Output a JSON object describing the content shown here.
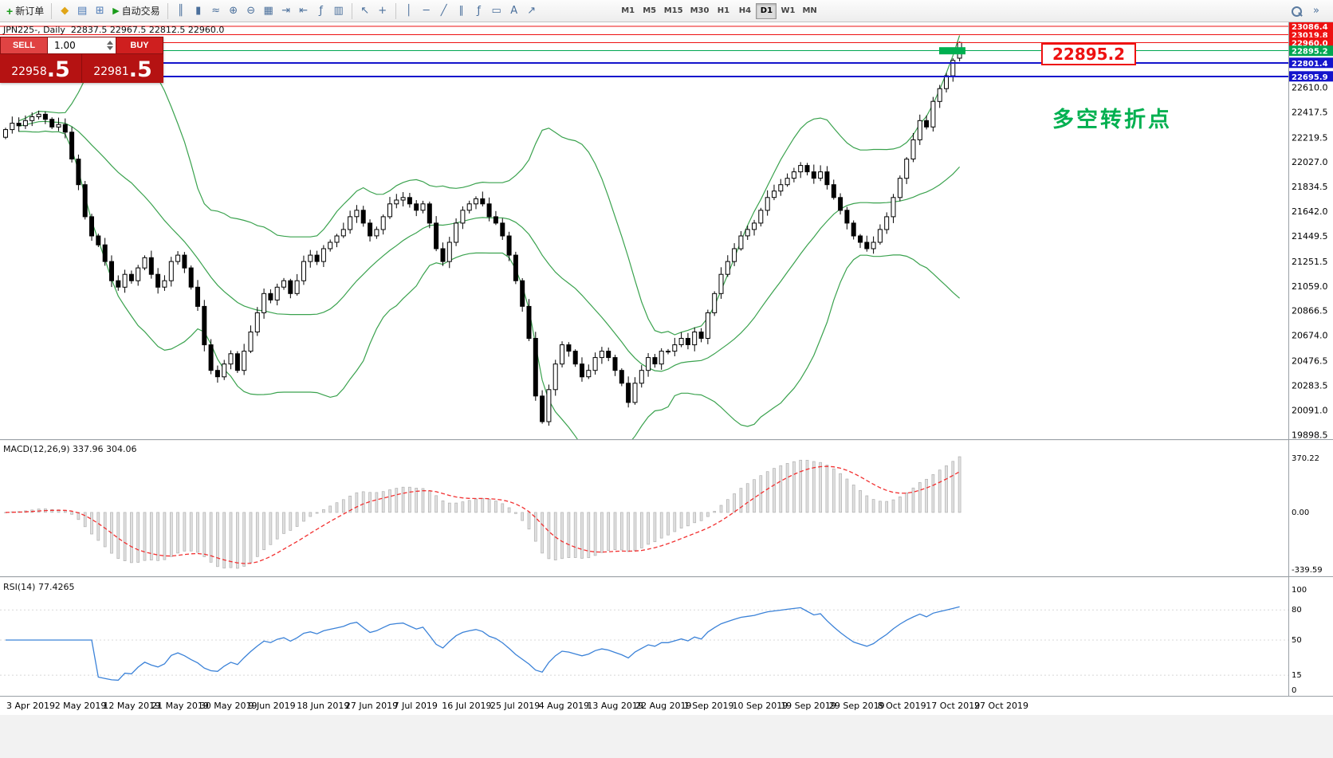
{
  "toolbar": {
    "new_order_label": "新订单",
    "new_order_icon": "+",
    "autotrading_label": "自动交易",
    "autotrading_icon": "▶",
    "panel_icons": [
      {
        "name": "market-watch-icon",
        "glyph": "◆",
        "color": "#e0a517"
      },
      {
        "name": "data-window-icon",
        "glyph": "▤",
        "color": "#4a78b5"
      },
      {
        "name": "navigator-icon",
        "glyph": "⊞",
        "color": "#4a78b5"
      }
    ],
    "chart_icons": [
      {
        "name": "bar-chart-icon",
        "glyph": "║"
      },
      {
        "name": "candlestick-chart-icon",
        "glyph": "▮"
      },
      {
        "name": "line-chart-icon",
        "glyph": "≈"
      },
      {
        "name": "zoom-in-icon",
        "glyph": "⊕"
      },
      {
        "name": "zoom-out-icon",
        "glyph": "⊖"
      },
      {
        "name": "tile-windows-icon",
        "glyph": "▦"
      },
      {
        "name": "auto-scroll-icon",
        "glyph": "⇥"
      },
      {
        "name": "chart-shift-icon",
        "glyph": "⇤"
      },
      {
        "name": "indicators-icon",
        "glyph": "ƒ"
      },
      {
        "name": "objects-list-icon",
        "glyph": "▥"
      }
    ],
    "cursor_icons": [
      {
        "name": "cursor-icon",
        "glyph": "↖"
      },
      {
        "name": "crosshair-icon",
        "glyph": "+"
      }
    ],
    "draw_icons": [
      {
        "name": "vertical-line-icon",
        "glyph": "│"
      },
      {
        "name": "horizontal-line-icon",
        "glyph": "─"
      },
      {
        "name": "trendline-icon",
        "glyph": "╱"
      },
      {
        "name": "channel-icon",
        "glyph": "∥"
      },
      {
        "name": "fibonacci-icon",
        "glyph": "ƒ"
      },
      {
        "name": "shapes-icon",
        "glyph": "▭"
      },
      {
        "name": "text-icon",
        "glyph": "A"
      },
      {
        "name": "arrows-icon",
        "glyph": "↗"
      }
    ],
    "timeframes": [
      "M1",
      "M5",
      "M15",
      "M30",
      "H1",
      "H4",
      "D1",
      "W1",
      "MN"
    ],
    "active_timeframe": "D1",
    "right_icons": [
      {
        "name": "search-icon"
      },
      {
        "name": "toolbar-more-icon",
        "glyph": "»"
      }
    ]
  },
  "chart": {
    "symbol_info": "JPN225-, Daily  22837.5 22967.5 22812.5 22960.0",
    "annotation": "多空转折点",
    "annotation_color": "#00b050",
    "price_label": "22895.2",
    "price_ticks": [
      "22610.0",
      "22417.5",
      "22219.5",
      "22027.0",
      "21834.5",
      "21642.0",
      "21449.5",
      "21251.5",
      "21059.0",
      "20866.5",
      "20674.0",
      "20476.5",
      "20283.5",
      "20091.0",
      "19898.5"
    ],
    "tagged_prices": [
      {
        "value": "23086.4",
        "color": "#ee1111"
      },
      {
        "value": "23019.8",
        "color": "#ee1111"
      },
      {
        "value": "22960.0",
        "color": "#ee1111"
      },
      {
        "value": "22895.2",
        "color": "#00a651"
      },
      {
        "value": "22801.4",
        "color": "#1414cc"
      },
      {
        "value": "22695.9",
        "color": "#1414cc"
      }
    ],
    "dates": [
      "3 Apr 2019",
      "2 May 2019",
      "12 May 2019",
      "21 May 2019",
      "30 May 2019",
      "9 Jun 2019",
      "18 Jun 2019",
      "27 Jun 2019",
      "7 Jul 2019",
      "16 Jul 2019",
      "25 Jul 2019",
      "4 Aug 2019",
      "13 Aug 2019",
      "22 Aug 2019",
      "1 Sep 2019",
      "10 Sep 2019",
      "19 Sep 2019",
      "29 Sep 2019",
      "8 Oct 2019",
      "17 Oct 2019",
      "27 Oct 2019"
    ]
  },
  "trade_panel": {
    "sell_label": "SELL",
    "buy_label": "BUY",
    "volume": "1.00",
    "sell_price_main": "22958",
    "sell_price_frac": ".5",
    "buy_price_main": "22981",
    "buy_price_frac": ".5"
  },
  "macd": {
    "title": "MACD(12,26,9)",
    "values": "337.96 304.06",
    "ticks": [
      "370.22",
      "0.00",
      "-339.59"
    ]
  },
  "rsi": {
    "title": "RSI(14)",
    "value": "77.4265",
    "ticks": [
      "100",
      "80",
      "50",
      "15",
      "0"
    ]
  },
  "chart_data": {
    "type": "candlestick",
    "symbol": "JPN225",
    "timeframe": "Daily",
    "ohlc_current": {
      "open": 22837.5,
      "high": 22967.5,
      "low": 22812.5,
      "close": 22960.0
    },
    "closes": [
      22280,
      22330,
      22310,
      22350,
      22380,
      22400,
      22360,
      22300,
      22320,
      22260,
      22050,
      21850,
      21600,
      21450,
      21380,
      21250,
      21100,
      21050,
      21150,
      21100,
      21200,
      21280,
      21150,
      21050,
      21100,
      21250,
      21300,
      21200,
      21050,
      20900,
      20600,
      20400,
      20350,
      20450,
      20530,
      20400,
      20550,
      20700,
      20850,
      21000,
      20950,
      21050,
      21100,
      21000,
      21100,
      21250,
      21300,
      21250,
      21350,
      21400,
      21450,
      21500,
      21600,
      21650,
      21550,
      21450,
      21500,
      21600,
      21700,
      21730,
      21750,
      21700,
      21650,
      21700,
      21550,
      21350,
      21250,
      21400,
      21550,
      21650,
      21700,
      21740,
      21700,
      21600,
      21550,
      21450,
      21300,
      21100,
      20900,
      20650,
      20200,
      20000,
      20250,
      20450,
      20600,
      20550,
      20450,
      20350,
      20400,
      20500,
      20550,
      20500,
      20400,
      20300,
      20150,
      20300,
      20400,
      20500,
      20450,
      20550,
      20550,
      20600,
      20650,
      20600,
      20700,
      20650,
      20850,
      21000,
      21150,
      21250,
      21350,
      21450,
      21500,
      21550,
      21650,
      21750,
      21800,
      21850,
      21900,
      21950,
      22000,
      21950,
      21900,
      21950,
      21850,
      21750,
      21650,
      21550,
      21450,
      21400,
      21350,
      21400,
      21500,
      21600,
      21750,
      21900,
      22050,
      22200,
      22350,
      22300,
      22500,
      22600,
      22700,
      22820,
      22960
    ],
    "overlays": {
      "bollinger_bands": {
        "period": 20,
        "deviation": 2,
        "color": "#3aa24e"
      }
    },
    "hlines": [
      {
        "price": 23086.4,
        "color": "#ee1111",
        "w": 1
      },
      {
        "price": 23019.8,
        "color": "#ee1111",
        "w": 1
      },
      {
        "price": 22960.0,
        "color": "#ee1111",
        "w": 1
      },
      {
        "price": 22895.2,
        "color": "#00a651",
        "w": 1
      },
      {
        "price": 22801.4,
        "color": "#1414cc",
        "w": 2
      },
      {
        "price": 22695.9,
        "color": "#1414cc",
        "w": 2
      }
    ],
    "highlight_segment": {
      "price": 22895.2,
      "label": "22895.2"
    },
    "sub_charts": [
      {
        "type": "macd",
        "fast": 12,
        "slow": 26,
        "signal_period": 9,
        "macd_value": 337.96,
        "signal_value": 304.06,
        "scale_max": 370.22,
        "scale_min": -339.59
      },
      {
        "type": "rsi",
        "period": 14,
        "value": 77.4265,
        "levels": [
          80,
          50,
          15
        ]
      }
    ],
    "colors": {
      "bull": "#ffffff",
      "bear": "#000000",
      "wick": "#000000",
      "bands": "#3aa24e",
      "macd_hist_fill": "#e0e0e0",
      "macd_hist_stroke": "#b0b0b0",
      "macd_signal": "#f23030",
      "rsi_line": "#3b82d8"
    }
  }
}
